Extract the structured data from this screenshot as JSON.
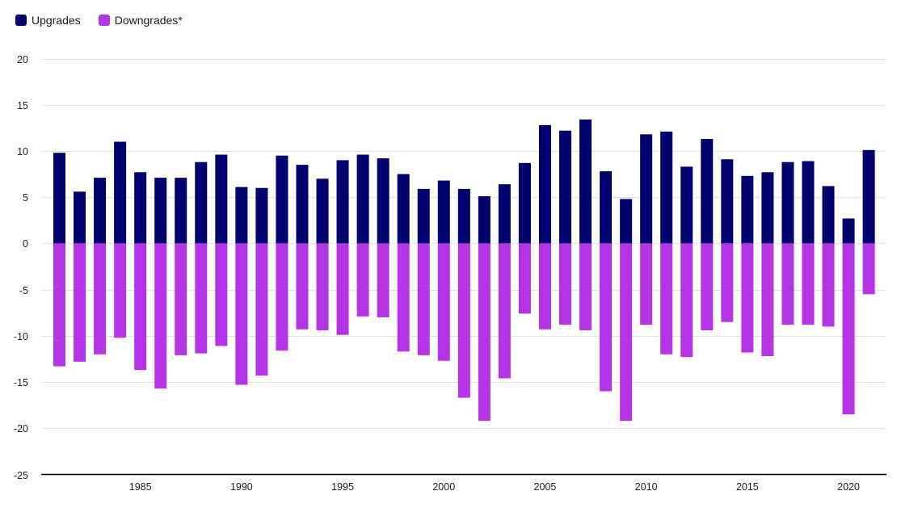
{
  "chart_data": {
    "type": "bar",
    "stacked": "diverging",
    "title": "",
    "xlabel": "",
    "ylabel": "",
    "ylim": [
      -25,
      20
    ],
    "yticks": [
      20,
      15,
      10,
      5,
      0,
      -5,
      -10,
      -15,
      -20,
      -25
    ],
    "xticks": [
      1985,
      1990,
      1995,
      2000,
      2005,
      2010,
      2015,
      2020
    ],
    "grid": true,
    "legend_position": "top-left",
    "categories": [
      1981,
      1982,
      1983,
      1984,
      1985,
      1986,
      1987,
      1988,
      1989,
      1990,
      1991,
      1992,
      1993,
      1994,
      1995,
      1996,
      1997,
      1998,
      1999,
      2000,
      2001,
      2002,
      2003,
      2004,
      2005,
      2006,
      2007,
      2008,
      2009,
      2010,
      2011,
      2012,
      2013,
      2014,
      2015,
      2016,
      2017,
      2018,
      2019,
      2020,
      2021
    ],
    "series": [
      {
        "name": "Upgrades",
        "color": "#00006e",
        "values": [
          9.8,
          5.6,
          7.1,
          11.0,
          7.7,
          7.1,
          7.1,
          8.8,
          9.6,
          6.1,
          6.0,
          9.5,
          8.5,
          7.0,
          9.0,
          9.6,
          9.2,
          7.5,
          5.9,
          6.8,
          5.9,
          5.1,
          6.4,
          8.7,
          12.8,
          12.2,
          13.4,
          7.8,
          4.8,
          11.8,
          12.1,
          8.3,
          11.3,
          9.1,
          7.3,
          7.7,
          8.8,
          8.9,
          6.2,
          2.7,
          10.1
        ]
      },
      {
        "name": "Downgrades*",
        "color": "#b535e6",
        "values": [
          -13.3,
          -12.8,
          -12.0,
          -10.2,
          -13.7,
          -15.7,
          -12.1,
          -11.9,
          -11.1,
          -15.3,
          -14.3,
          -11.6,
          -9.3,
          -9.4,
          -9.9,
          -7.9,
          -8.0,
          -11.7,
          -12.1,
          -12.7,
          -16.7,
          -19.2,
          -14.6,
          -7.6,
          -9.3,
          -8.8,
          -9.4,
          -16.0,
          -19.2,
          -8.8,
          -12.0,
          -12.3,
          -9.4,
          -8.5,
          -11.8,
          -12.2,
          -8.8,
          -8.8,
          -9.0,
          -18.5,
          -5.5
        ]
      }
    ]
  }
}
